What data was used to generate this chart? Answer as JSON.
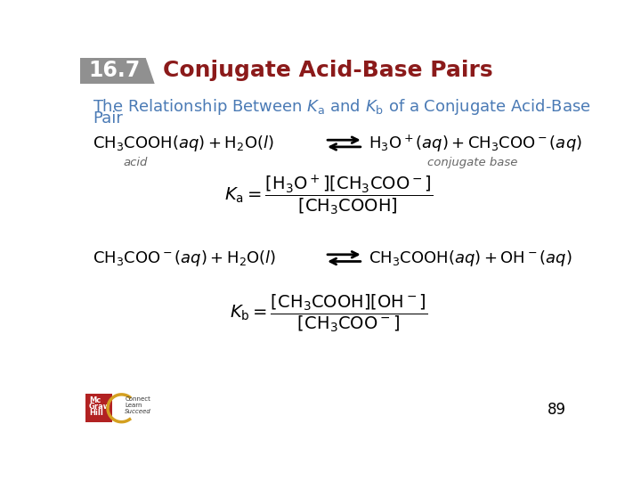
{
  "title_number": "16.7",
  "title_text": "Conjugate Acid-Base Pairs",
  "title_bg_color": "#909090",
  "title_text_color": "#8b1a1a",
  "title_num_color": "#ffffff",
  "subtitle_color": "#4a7ab5",
  "page_number": "89",
  "bg_color": "#ffffff",
  "eq1_left": "$\\mathrm{CH_3COOH}(aq) + \\mathrm{H_2O}(l)$",
  "eq1_right": "$\\mathrm{H_3O^+}(aq) + \\mathrm{CH_3COO^-}(aq)$",
  "eq2_left": "$\\mathrm{CH_3COO^-}(aq) + \\mathrm{H_2O}(l)$",
  "eq2_right": "$\\mathrm{CH_3COOH}(aq) + \\mathrm{OH^-}(aq)$",
  "ka_expr": "$K_{\\mathrm{a}} = \\dfrac{[\\mathrm{H_3O^+}][\\mathrm{CH_3COO^-}]}{[\\mathrm{CH_3COOH}]}$",
  "kb_expr": "$K_{\\mathrm{b}} = \\dfrac{[\\mathrm{CH_3COOH}][\\mathrm{OH^-}]}{[\\mathrm{CH_3COO^-}]}$",
  "label_acid": "acid",
  "label_conj_base": "conjugate base"
}
